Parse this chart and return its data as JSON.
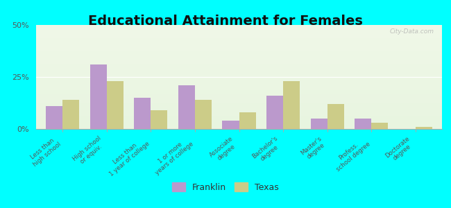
{
  "title": "Educational Attainment for Females",
  "categories": [
    "Less than\nhigh school",
    "High school\nor equiv.",
    "Less than\n1 year of college",
    "1 or more\nyears of college",
    "Associate\ndegree",
    "Bachelor's\ndegree",
    "Master's\ndegree",
    "Profess.\nschool degree",
    "Doctorate\ndegree"
  ],
  "franklin_values": [
    11,
    31,
    15,
    21,
    4,
    16,
    5,
    5,
    0
  ],
  "texas_values": [
    14,
    23,
    9,
    14,
    8,
    23,
    12,
    3,
    1
  ],
  "franklin_color": "#bb99cc",
  "texas_color": "#cccc88",
  "background_color": "#00ffff",
  "yticks": [
    0,
    25,
    50
  ],
  "ylim": [
    0,
    50
  ],
  "title_fontsize": 14,
  "legend_labels": [
    "Franklin",
    "Texas"
  ],
  "watermark": "City-Data.com"
}
